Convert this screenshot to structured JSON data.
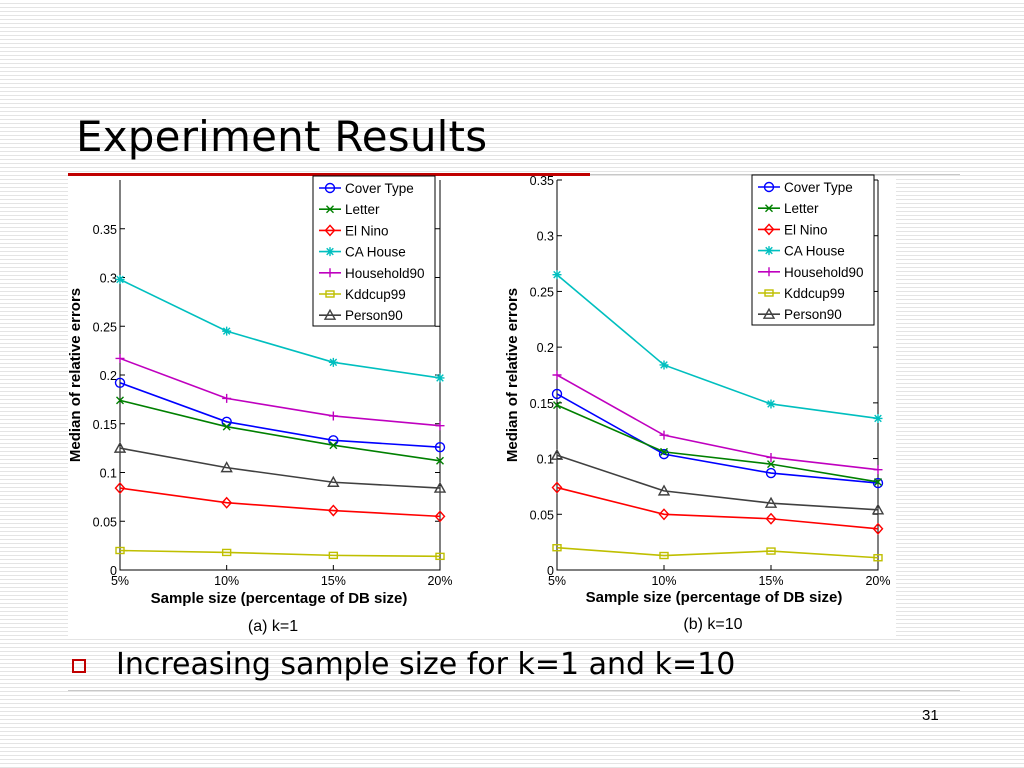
{
  "slide": {
    "title": "Experiment Results",
    "bullet": "Increasing sample size for k=1 and k=10",
    "page_number": "31"
  },
  "series_styles": [
    {
      "name": "Cover Type",
      "color": "#0000ff",
      "marker": "circle"
    },
    {
      "name": "Letter",
      "color": "#008000",
      "marker": "x"
    },
    {
      "name": "El Nino",
      "color": "#ff0000",
      "marker": "diamond"
    },
    {
      "name": "CA House",
      "color": "#00bfbf",
      "marker": "star"
    },
    {
      "name": "Household90",
      "color": "#bf00bf",
      "marker": "plus"
    },
    {
      "name": "Kddcup99",
      "color": "#bfbf00",
      "marker": "square"
    },
    {
      "name": "Person90",
      "color": "#404040",
      "marker": "triangle"
    }
  ],
  "chart_data": [
    {
      "type": "line",
      "caption": "(a) k=1",
      "xlabel": "Sample size (percentage  of DB size)",
      "ylabel": "Median of relative errors",
      "categories": [
        "5%",
        "10%",
        "15%",
        "20%"
      ],
      "yticks": [
        "0",
        "0.05",
        "0.1",
        "0.15",
        "0.2",
        "0.25",
        "0.3",
        "0.35"
      ],
      "ylim": [
        0,
        0.4
      ],
      "legend_position": "top-right",
      "series": [
        {
          "name": "Cover Type",
          "values": [
            0.192,
            0.152,
            0.133,
            0.126
          ]
        },
        {
          "name": "Letter",
          "values": [
            0.174,
            0.147,
            0.128,
            0.112
          ]
        },
        {
          "name": "El Nino",
          "values": [
            0.084,
            0.069,
            0.061,
            0.055
          ]
        },
        {
          "name": "CA House",
          "values": [
            0.298,
            0.245,
            0.213,
            0.197
          ]
        },
        {
          "name": "Household90",
          "values": [
            0.217,
            0.176,
            0.158,
            0.148
          ]
        },
        {
          "name": "Kddcup99",
          "values": [
            0.02,
            0.018,
            0.015,
            0.014
          ]
        },
        {
          "name": "Person90",
          "values": [
            0.125,
            0.105,
            0.09,
            0.084
          ]
        }
      ]
    },
    {
      "type": "line",
      "caption": "(b) k=10",
      "xlabel": "Sample size (percentage of DB size)",
      "ylabel": "Median of relative errors",
      "categories": [
        "5%",
        "10%",
        "15%",
        "20%"
      ],
      "yticks": [
        "0",
        "0.05",
        "0.1",
        "0.15",
        "0.2",
        "0.25",
        "0.3",
        "0.35"
      ],
      "ylim": [
        0,
        0.35
      ],
      "legend_position": "top-right",
      "series": [
        {
          "name": "Cover Type",
          "values": [
            0.158,
            0.104,
            0.087,
            0.078
          ]
        },
        {
          "name": "Letter",
          "values": [
            0.148,
            0.106,
            0.095,
            0.079
          ]
        },
        {
          "name": "El Nino",
          "values": [
            0.074,
            0.05,
            0.046,
            0.037
          ]
        },
        {
          "name": "CA House",
          "values": [
            0.265,
            0.184,
            0.149,
            0.136
          ]
        },
        {
          "name": "Household90",
          "values": [
            0.175,
            0.121,
            0.101,
            0.09
          ]
        },
        {
          "name": "Kddcup99",
          "values": [
            0.02,
            0.013,
            0.017,
            0.011
          ]
        },
        {
          "name": "Person90",
          "values": [
            0.103,
            0.071,
            0.06,
            0.054
          ]
        }
      ]
    }
  ]
}
